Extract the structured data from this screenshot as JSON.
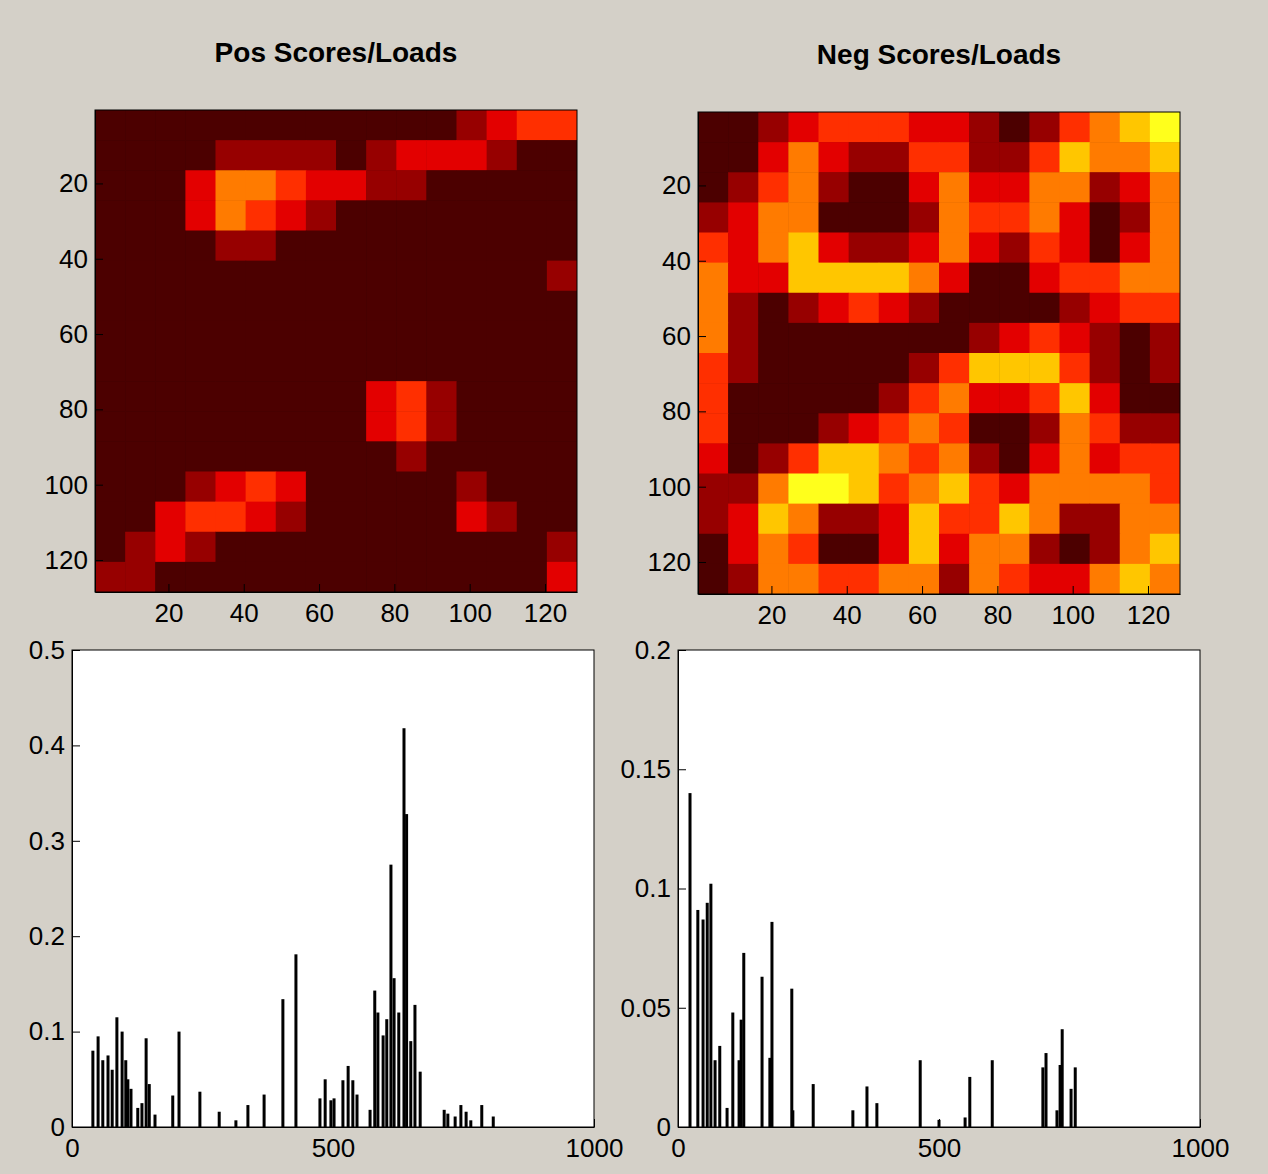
{
  "chart_data": [
    {
      "type": "heatmap",
      "title": "Pos Scores/Loads",
      "x": [
        4.5,
        12.5,
        20.5,
        28.5,
        36.5,
        44.5,
        52.5,
        60.5,
        68.5,
        76.5,
        84.5,
        92.5,
        100.5,
        108.5,
        116.5,
        124.5
      ],
      "y": [
        4.5,
        12.5,
        20.5,
        28.5,
        36.5,
        44.5,
        52.5,
        60.5,
        68.5,
        76.5,
        84.5,
        92.5,
        100.5,
        108.5,
        116.5,
        124.5
      ],
      "z": [
        [
          1,
          1,
          1,
          1,
          1,
          1,
          1,
          1,
          1,
          1,
          1,
          1,
          2,
          3,
          4,
          4
        ],
        [
          1,
          1,
          1,
          1,
          2,
          2,
          2,
          2,
          1,
          2,
          3,
          3,
          3,
          2,
          1,
          1
        ],
        [
          1,
          1,
          1,
          3,
          5,
          5,
          4,
          3,
          3,
          2,
          2,
          1,
          1,
          1,
          1,
          1
        ],
        [
          1,
          1,
          1,
          3,
          5,
          4,
          3,
          2,
          1,
          1,
          1,
          1,
          1,
          1,
          1,
          1
        ],
        [
          1,
          1,
          1,
          1,
          2,
          2,
          1,
          1,
          1,
          1,
          1,
          1,
          1,
          1,
          1,
          1
        ],
        [
          1,
          1,
          1,
          1,
          1,
          1,
          1,
          1,
          1,
          1,
          1,
          1,
          1,
          1,
          1,
          2
        ],
        [
          1,
          1,
          1,
          1,
          1,
          1,
          1,
          1,
          1,
          1,
          1,
          1,
          1,
          1,
          1,
          1
        ],
        [
          1,
          1,
          1,
          1,
          1,
          1,
          1,
          1,
          1,
          1,
          1,
          1,
          1,
          1,
          1,
          1
        ],
        [
          1,
          1,
          1,
          1,
          1,
          1,
          1,
          1,
          1,
          1,
          1,
          1,
          1,
          1,
          1,
          1
        ],
        [
          1,
          1,
          1,
          1,
          1,
          1,
          1,
          1,
          1,
          3,
          4,
          2,
          1,
          1,
          1,
          1
        ],
        [
          1,
          1,
          1,
          1,
          1,
          1,
          1,
          1,
          1,
          3,
          4,
          2,
          1,
          1,
          1,
          1
        ],
        [
          1,
          1,
          1,
          1,
          1,
          1,
          1,
          1,
          1,
          1,
          2,
          1,
          1,
          1,
          1,
          1
        ],
        [
          1,
          1,
          1,
          2,
          3,
          4,
          3,
          1,
          1,
          1,
          1,
          1,
          2,
          1,
          1,
          1
        ],
        [
          1,
          1,
          3,
          4,
          4,
          3,
          2,
          1,
          1,
          1,
          1,
          1,
          3,
          2,
          1,
          1
        ],
        [
          1,
          2,
          3,
          2,
          1,
          1,
          1,
          1,
          1,
          1,
          1,
          1,
          1,
          1,
          1,
          2
        ],
        [
          2,
          2,
          1,
          1,
          1,
          1,
          1,
          1,
          1,
          1,
          1,
          1,
          1,
          1,
          1,
          3
        ]
      ],
      "zlim": [
        0,
        9
      ],
      "xlim": [
        0.5,
        128.5
      ],
      "ylim": [
        0.5,
        128.5
      ],
      "xticks": [
        20,
        40,
        60,
        80,
        100,
        120
      ],
      "yticks": [
        20,
        40,
        60,
        80,
        100,
        120
      ]
    },
    {
      "type": "heatmap",
      "title": "Neg Scores/Loads",
      "x": [
        4.5,
        12.5,
        20.5,
        28.5,
        36.5,
        44.5,
        52.5,
        60.5,
        68.5,
        76.5,
        84.5,
        92.5,
        100.5,
        108.5,
        116.5,
        124.5
      ],
      "y": [
        4.5,
        12.5,
        20.5,
        28.5,
        36.5,
        44.5,
        52.5,
        60.5,
        68.5,
        76.5,
        84.5,
        92.5,
        100.5,
        108.5,
        116.5,
        124.5
      ],
      "z": [
        [
          1,
          1,
          2,
          3,
          4,
          4,
          4,
          3,
          3,
          2,
          1,
          2,
          4,
          5,
          6,
          7
        ],
        [
          1,
          1,
          3,
          5,
          3,
          2,
          2,
          4,
          4,
          2,
          2,
          4,
          6,
          5,
          5,
          6
        ],
        [
          1,
          2,
          4,
          5,
          2,
          1,
          1,
          3,
          5,
          3,
          3,
          5,
          5,
          2,
          3,
          5
        ],
        [
          2,
          3,
          5,
          5,
          1,
          1,
          1,
          2,
          5,
          4,
          4,
          5,
          3,
          1,
          2,
          5
        ],
        [
          4,
          3,
          5,
          6,
          3,
          2,
          2,
          3,
          5,
          3,
          2,
          4,
          3,
          1,
          3,
          5
        ],
        [
          5,
          3,
          3,
          6,
          6,
          6,
          6,
          5,
          3,
          1,
          1,
          3,
          4,
          4,
          5,
          5
        ],
        [
          5,
          2,
          1,
          2,
          3,
          4,
          3,
          2,
          1,
          1,
          1,
          1,
          2,
          3,
          4,
          4
        ],
        [
          5,
          2,
          1,
          1,
          1,
          1,
          1,
          1,
          1,
          2,
          3,
          4,
          3,
          2,
          1,
          2
        ],
        [
          4,
          2,
          1,
          1,
          1,
          1,
          1,
          2,
          4,
          6,
          6,
          6,
          4,
          2,
          1,
          2
        ],
        [
          4,
          1,
          1,
          1,
          1,
          1,
          2,
          4,
          5,
          3,
          3,
          4,
          6,
          3,
          1,
          1
        ],
        [
          4,
          1,
          1,
          1,
          2,
          3,
          4,
          5,
          4,
          1,
          1,
          2,
          5,
          4,
          2,
          2
        ],
        [
          3,
          1,
          2,
          4,
          6,
          6,
          5,
          4,
          5,
          2,
          1,
          3,
          5,
          3,
          4,
          4
        ],
        [
          2,
          2,
          5,
          7,
          7,
          6,
          4,
          5,
          6,
          4,
          3,
          5,
          5,
          5,
          5,
          4
        ],
        [
          2,
          3,
          6,
          5,
          2,
          2,
          3,
          6,
          4,
          4,
          6,
          5,
          2,
          2,
          5,
          5
        ],
        [
          1,
          3,
          5,
          4,
          1,
          1,
          3,
          6,
          3,
          5,
          5,
          2,
          1,
          2,
          5,
          6
        ],
        [
          1,
          2,
          5,
          5,
          4,
          4,
          5,
          5,
          2,
          5,
          4,
          3,
          3,
          5,
          6,
          5
        ]
      ],
      "zlim": [
        0,
        9
      ],
      "xlim": [
        0.5,
        128.5
      ],
      "ylim": [
        0.5,
        128.5
      ],
      "xticks": [
        20,
        40,
        60,
        80,
        100,
        120
      ],
      "yticks": [
        20,
        40,
        60,
        80,
        100,
        120
      ]
    },
    {
      "type": "bar",
      "color": "#000000",
      "x": [
        40,
        50,
        59,
        69,
        77,
        86,
        96,
        103,
        107,
        113,
        126,
        134,
        142,
        148,
        159,
        193,
        205,
        245,
        282,
        314,
        337,
        368,
        404,
        429,
        475,
        485,
        496,
        502,
        519,
        529,
        538,
        546,
        571,
        580,
        586,
        596,
        603,
        611,
        617,
        626,
        636,
        641,
        649,
        657,
        667,
        713,
        720,
        734,
        745,
        755,
        764,
        785,
        807
      ],
      "values": [
        0.08,
        0.095,
        0.07,
        0.075,
        0.06,
        0.115,
        0.1,
        0.07,
        0.05,
        0.04,
        0.02,
        0.025,
        0.093,
        0.045,
        0.013,
        0.033,
        0.1,
        0.037,
        0.016,
        0.007,
        0.023,
        0.034,
        0.134,
        0.181,
        0.03,
        0.05,
        0.028,
        0.03,
        0.049,
        0.064,
        0.049,
        0.034,
        0.018,
        0.143,
        0.12,
        0.096,
        0.113,
        0.275,
        0.156,
        0.12,
        0.418,
        0.328,
        0.09,
        0.128,
        0.058,
        0.018,
        0.014,
        0.011,
        0.023,
        0.016,
        0.007,
        0.023,
        0.011
      ],
      "xlim": [
        0,
        1000
      ],
      "ylim": [
        0,
        0.5
      ],
      "xticks": [
        0,
        500,
        1000
      ],
      "yticks": [
        0,
        0.1,
        0.2,
        0.3,
        0.4,
        0.5
      ]
    },
    {
      "type": "bar",
      "color": "#000000",
      "x": [
        23,
        38,
        48,
        56,
        63,
        71,
        80,
        94,
        105,
        117,
        121,
        126,
        161,
        176,
        180,
        218,
        220,
        259,
        335,
        362,
        381,
        464,
        500,
        550,
        559,
        602,
        699,
        705,
        726,
        732,
        736,
        753,
        761
      ],
      "values": [
        0.14,
        0.091,
        0.087,
        0.094,
        0.102,
        0.028,
        0.034,
        0.008,
        0.048,
        0.028,
        0.045,
        0.073,
        0.063,
        0.029,
        0.086,
        0.058,
        0.007,
        0.018,
        0.007,
        0.017,
        0.01,
        0.028,
        0.003,
        0.004,
        0.021,
        0.028,
        0.025,
        0.031,
        0.007,
        0.026,
        0.041,
        0.016,
        0.025
      ],
      "xlim": [
        0,
        1000
      ],
      "ylim": [
        0,
        0.2
      ],
      "xticks": [
        0,
        500,
        1000
      ],
      "yticks": [
        0,
        0.05,
        0.1,
        0.15,
        0.2
      ]
    }
  ]
}
